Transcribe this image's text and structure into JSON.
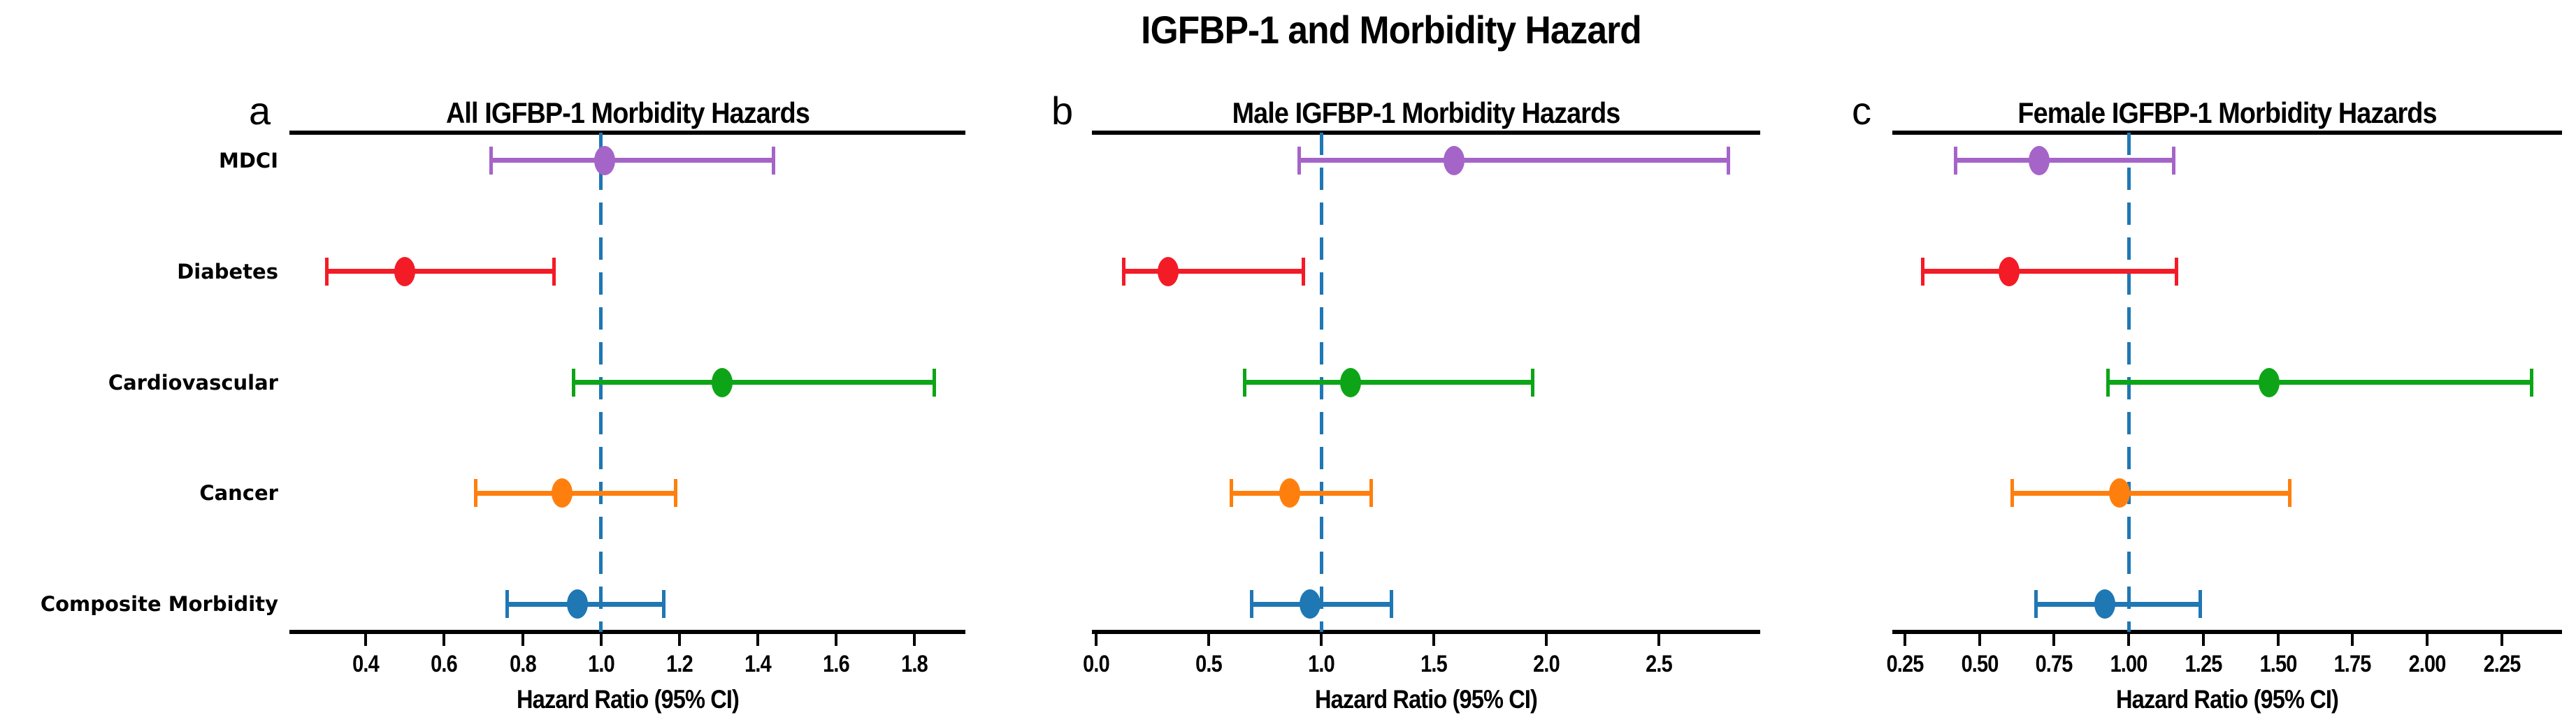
{
  "figure": {
    "title": "IGFBP-1 and Morbidity Hazard",
    "categories": [
      "MDCI",
      "Diabetes",
      "Cardiovascular",
      "Cancer",
      "Composite Morbidity"
    ],
    "colors": [
      "#a565c8",
      "#f31b26",
      "#0da517",
      "#ff7f0e",
      "#1f77b4"
    ],
    "reference_line_color": "#1f77b4",
    "axis_color": "#000000"
  },
  "chart_data": [
    {
      "type": "scatter",
      "variant": "forest-plot",
      "letter": "a",
      "title": "All IGFBP-1 Morbidity Hazards",
      "xlabel": "Hazard Ratio (95% CI)",
      "xlim": [
        0.205,
        1.93
      ],
      "reference_x": 1.0,
      "ticks": [
        {
          "x": 0.4,
          "label": "0.4"
        },
        {
          "x": 0.6,
          "label": "0.6"
        },
        {
          "x": 0.8,
          "label": "0.8"
        },
        {
          "x": 1.0,
          "label": "1.0"
        },
        {
          "x": 1.2,
          "label": "1.2"
        },
        {
          "x": 1.4,
          "label": "1.4"
        },
        {
          "x": 1.6,
          "label": "1.6"
        },
        {
          "x": 1.8,
          "label": "1.8"
        }
      ],
      "rows": [
        {
          "category": "MDCI",
          "hr": 1.01,
          "ci_low": 0.72,
          "ci_high": 1.44
        },
        {
          "category": "Diabetes",
          "hr": 0.5,
          "ci_low": 0.3,
          "ci_high": 0.88
        },
        {
          "category": "Cardiovascular",
          "hr": 1.31,
          "ci_low": 0.93,
          "ci_high": 1.85
        },
        {
          "category": "Cancer",
          "hr": 0.9,
          "ci_low": 0.68,
          "ci_high": 1.19
        },
        {
          "category": "Composite Morbidity",
          "hr": 0.94,
          "ci_low": 0.76,
          "ci_high": 1.16
        }
      ]
    },
    {
      "type": "scatter",
      "variant": "forest-plot",
      "letter": "b",
      "title": "Male IGFBP-1 Morbidity Hazards",
      "xlabel": "Hazard Ratio (95% CI)",
      "xlim": [
        -0.02,
        2.95
      ],
      "reference_x": 1.0,
      "ticks": [
        {
          "x": 0.0,
          "label": "0.0"
        },
        {
          "x": 0.5,
          "label": "0.5"
        },
        {
          "x": 1.0,
          "label": "1.0"
        },
        {
          "x": 1.5,
          "label": "1.5"
        },
        {
          "x": 2.0,
          "label": "2.0"
        },
        {
          "x": 2.5,
          "label": "2.5"
        }
      ],
      "rows": [
        {
          "category": "MDCI",
          "hr": 1.59,
          "ci_low": 0.9,
          "ci_high": 2.81
        },
        {
          "category": "Diabetes",
          "hr": 0.32,
          "ci_low": 0.12,
          "ci_high": 0.92
        },
        {
          "category": "Cardiovascular",
          "hr": 1.13,
          "ci_low": 0.66,
          "ci_high": 1.94
        },
        {
          "category": "Cancer",
          "hr": 0.86,
          "ci_low": 0.6,
          "ci_high": 1.22
        },
        {
          "category": "Composite Morbidity",
          "hr": 0.95,
          "ci_low": 0.69,
          "ci_high": 1.31
        }
      ]
    },
    {
      "type": "scatter",
      "variant": "forest-plot",
      "letter": "c",
      "title": "Female IGFBP-1 Morbidity Hazards",
      "xlabel": "Hazard Ratio (95% CI)",
      "xlim": [
        0.208,
        2.452
      ],
      "reference_x": 1.0,
      "ticks": [
        {
          "x": 0.25,
          "label": "0.25"
        },
        {
          "x": 0.5,
          "label": "0.50"
        },
        {
          "x": 0.75,
          "label": "0.75"
        },
        {
          "x": 1.0,
          "label": "1.00"
        },
        {
          "x": 1.25,
          "label": "1.25"
        },
        {
          "x": 1.5,
          "label": "1.50"
        },
        {
          "x": 1.75,
          "label": "1.75"
        },
        {
          "x": 2.0,
          "label": "2.00"
        },
        {
          "x": 2.25,
          "label": "2.25"
        }
      ],
      "rows": [
        {
          "category": "MDCI",
          "hr": 0.7,
          "ci_low": 0.42,
          "ci_high": 1.15
        },
        {
          "category": "Diabetes",
          "hr": 0.6,
          "ci_low": 0.31,
          "ci_high": 1.16
        },
        {
          "category": "Cardiovascular",
          "hr": 1.47,
          "ci_low": 0.93,
          "ci_high": 2.35
        },
        {
          "category": "Cancer",
          "hr": 0.97,
          "ci_low": 0.61,
          "ci_high": 1.54
        },
        {
          "category": "Composite Morbidity",
          "hr": 0.92,
          "ci_low": 0.69,
          "ci_high": 1.24
        }
      ]
    }
  ]
}
